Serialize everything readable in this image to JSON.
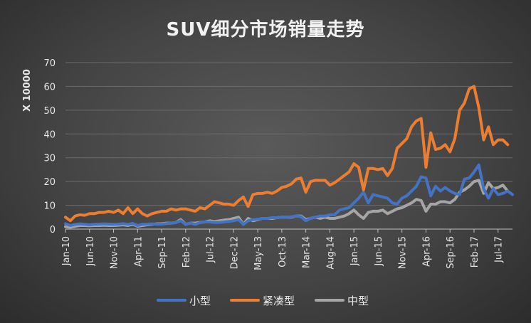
{
  "chart_data": {
    "type": "line",
    "title": "SUV细分市场销量走势",
    "ylabel": "X 10000",
    "xlabel": "",
    "ylim": [
      0,
      70
    ],
    "yticks": [
      0,
      10,
      20,
      30,
      40,
      50,
      60,
      70
    ],
    "grid": true,
    "legend_position": "bottom",
    "x_tick_labels": [
      "Jan-10",
      "Jun-10",
      "Nov-10",
      "Apr-11",
      "Sep-11",
      "Feb-12",
      "Jul-12",
      "Dec-12",
      "May-13",
      "Oct-13",
      "Mar-14",
      "Aug-14",
      "Jan-15",
      "Jun-15",
      "Nov-15",
      "Apr-16",
      "Sep-16",
      "Feb-17",
      "Jul-17"
    ],
    "x_tick_step": 5,
    "series": [
      {
        "name": "小型",
        "color": "#4472c4",
        "values": [
          2.3,
          1.5,
          2.0,
          2.2,
          2.0,
          1.8,
          2.0,
          2.1,
          2.2,
          2.1,
          2.0,
          2.1,
          2.3,
          2.0,
          2.4,
          1.5,
          2.0,
          2.1,
          2.2,
          2.0,
          2.1,
          2.3,
          2.5,
          2.8,
          3.5,
          2.0,
          2.5,
          2.0,
          2.7,
          3.0,
          3.0,
          2.8,
          2.8,
          3.0,
          3.2,
          3.5,
          4.0,
          2.0,
          3.5,
          4.0,
          4.2,
          4.5,
          4.5,
          4.8,
          4.8,
          5.0,
          5.0,
          5.2,
          5.5,
          5.2,
          3.5,
          4.5,
          5.0,
          5.5,
          5.5,
          6.0,
          6.0,
          8.0,
          8.5,
          9.0,
          11.0,
          13.0,
          15.5,
          11.0,
          14.5,
          14.0,
          13.5,
          13.0,
          11.0,
          10.5,
          13.0,
          14.0,
          16.0,
          18.0,
          22.0,
          21.5,
          14.0,
          18.0,
          16.0,
          17.5,
          16.0,
          15.0,
          14.5,
          21.0,
          21.5,
          24.0,
          27.0,
          17.0,
          13.0,
          17.0,
          14.5,
          15.0,
          16.0,
          14.5
        ]
      },
      {
        "name": "紧凑型",
        "color": "#ed7d31",
        "values": [
          5.0,
          3.5,
          5.5,
          6.0,
          5.8,
          6.5,
          6.5,
          7.0,
          7.0,
          7.5,
          7.0,
          8.0,
          6.5,
          9.0,
          6.5,
          8.5,
          6.5,
          5.5,
          6.5,
          7.0,
          7.5,
          7.5,
          8.5,
          8.0,
          8.5,
          8.5,
          8.0,
          7.5,
          9.0,
          8.5,
          10.0,
          11.5,
          11.0,
          10.5,
          10.5,
          10.0,
          12.0,
          13.5,
          9.5,
          14.5,
          15.0,
          15.0,
          15.5,
          15.0,
          16.0,
          17.5,
          18.0,
          19.0,
          21.0,
          21.5,
          15.5,
          20.0,
          20.5,
          20.5,
          20.5,
          18.5,
          19.5,
          21.0,
          22.5,
          24.0,
          27.5,
          26.0,
          16.5,
          25.5,
          25.5,
          25.0,
          25.5,
          22.5,
          25.5,
          34.0,
          36.0,
          38.0,
          43.0,
          45.5,
          46.5,
          26.0,
          40.5,
          33.5,
          34.0,
          35.5,
          32.5,
          38.0,
          50.0,
          53.0,
          59.0,
          60.0,
          51.0,
          37.5,
          43.0,
          35.5,
          37.5,
          37.5,
          35.5
        ]
      },
      {
        "name": "中型",
        "color": "#a5a5a5",
        "values": [
          1.0,
          0.8,
          1.2,
          1.5,
          1.5,
          1.4,
          1.5,
          1.5,
          1.6,
          1.5,
          1.5,
          1.6,
          1.8,
          1.5,
          2.0,
          1.2,
          1.5,
          1.8,
          2.0,
          2.2,
          2.3,
          2.5,
          2.5,
          2.8,
          4.0,
          2.0,
          2.5,
          2.5,
          2.8,
          3.0,
          3.5,
          3.2,
          3.5,
          3.8,
          4.0,
          4.5,
          5.0,
          2.0,
          4.5,
          3.5,
          4.0,
          4.5,
          4.5,
          4.5,
          4.8,
          5.0,
          5.0,
          5.0,
          5.5,
          5.5,
          4.0,
          4.5,
          5.0,
          4.5,
          5.0,
          4.5,
          4.5,
          5.0,
          5.5,
          6.5,
          8.0,
          6.0,
          4.5,
          7.0,
          7.5,
          7.5,
          8.0,
          6.5,
          7.5,
          8.5,
          9.0,
          10.0,
          11.0,
          12.5,
          12.0,
          7.5,
          10.5,
          10.5,
          11.5,
          11.5,
          11.0,
          12.5,
          15.5,
          16.5,
          18.0,
          20.0,
          20.5,
          15.0,
          19.5,
          17.0,
          17.5,
          18.5,
          16.0
        ]
      }
    ]
  }
}
